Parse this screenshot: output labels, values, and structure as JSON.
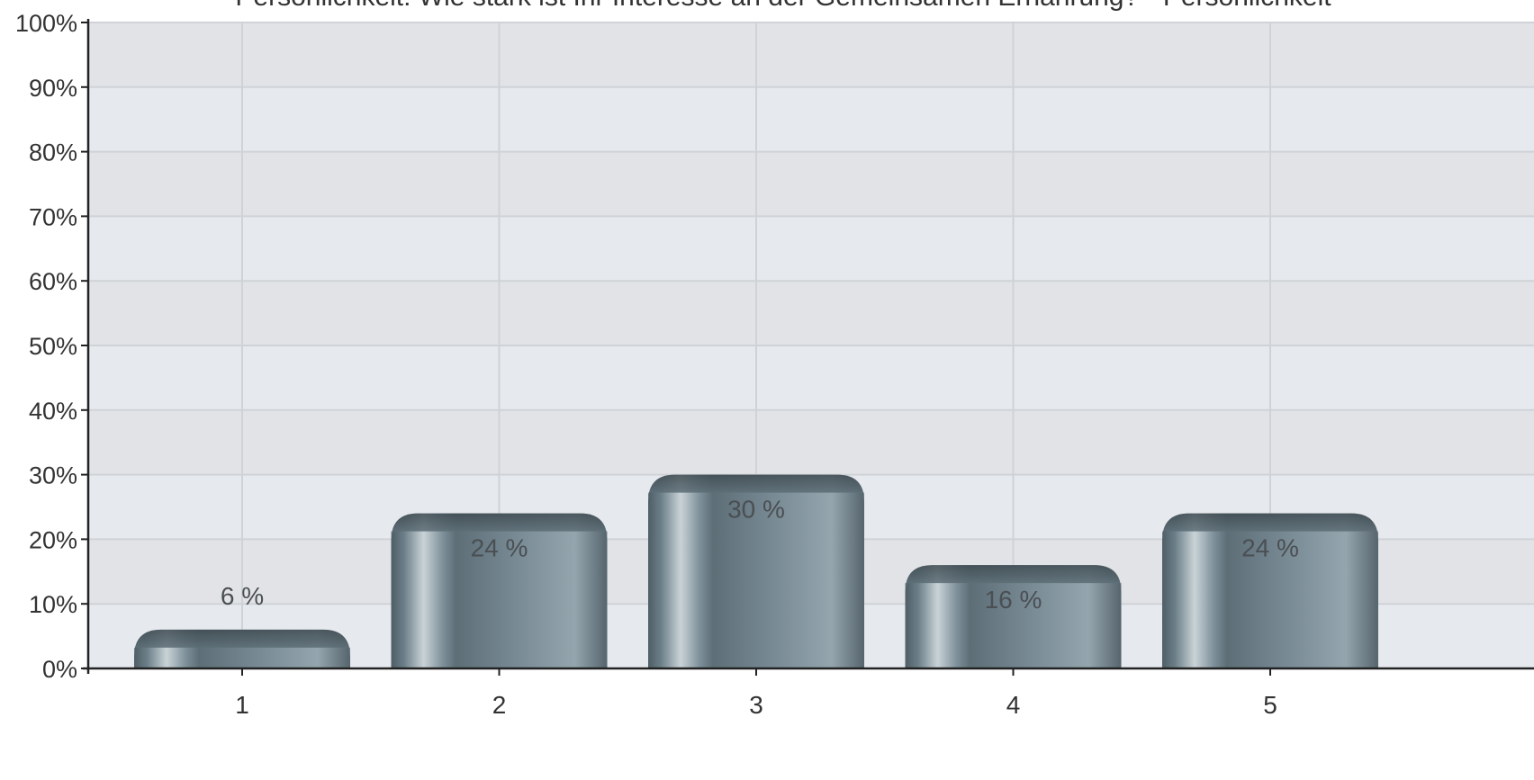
{
  "chart_data": {
    "type": "bar",
    "title": "Persönlichkeit: Wie stark ist Ihr Interesse an der Gemeinsamen Ernährung? - Persönlichkeit",
    "categories": [
      "1",
      "2",
      "3",
      "4",
      "5"
    ],
    "values": [
      6,
      24,
      30,
      16,
      24
    ],
    "value_labels": [
      "6 %",
      "24 %",
      "30 %",
      "16 %",
      "24 %"
    ],
    "y_ticks": [
      "0%",
      "10%",
      "20%",
      "30%",
      "40%",
      "50%",
      "60%",
      "70%",
      "80%",
      "90%",
      "100%"
    ],
    "ylim": [
      0,
      100
    ],
    "xlabel": "",
    "ylabel": "",
    "grid": true,
    "colors": {
      "bar_dark": "#4f5e66",
      "bar_mid": "#6c7f89",
      "bar_light": "#94a5ae",
      "bar_highlight": "#c9d3d7",
      "plot_bg_a": "#e6e9ed",
      "plot_bg_b": "#e2e3e6",
      "grid": "#cfd3d7",
      "axis": "#222222"
    }
  }
}
